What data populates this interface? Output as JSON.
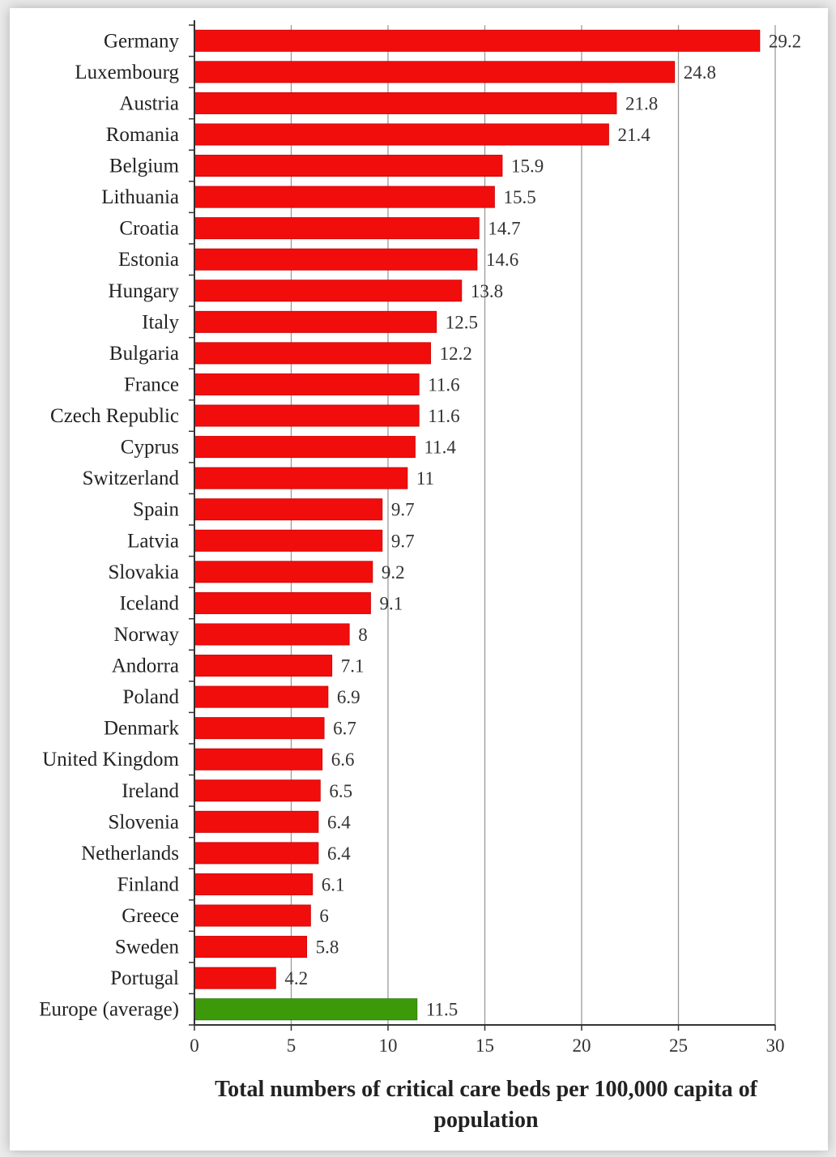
{
  "chart_data": {
    "type": "bar",
    "orientation": "horizontal",
    "xlabel_lines": [
      "Total numbers of critical care beds per 100,000 capita of",
      "population"
    ],
    "xlim": [
      0,
      30
    ],
    "xticks": [
      0,
      5,
      10,
      15,
      20,
      25,
      30
    ],
    "grid": "vertical",
    "colors": {
      "bar": "#f20d0d",
      "average_bar": "#3c9a0a"
    },
    "categories": [
      "Germany",
      "Luxembourg",
      "Austria",
      "Romania",
      "Belgium",
      "Lithuania",
      "Croatia",
      "Estonia",
      "Hungary",
      "Italy",
      "Bulgaria",
      "France",
      "Czech Republic",
      "Cyprus",
      "Switzerland",
      "Spain",
      "Latvia",
      "Slovakia",
      "Iceland",
      "Norway",
      "Andorra",
      "Poland",
      "Denmark",
      "United Kingdom",
      "Ireland",
      "Slovenia",
      "Netherlands",
      "Finland",
      "Greece",
      "Sweden",
      "Portugal",
      "Europe (average)"
    ],
    "values": [
      29.2,
      24.8,
      21.8,
      21.4,
      15.9,
      15.5,
      14.7,
      14.6,
      13.8,
      12.5,
      12.2,
      11.6,
      11.6,
      11.4,
      11,
      9.7,
      9.7,
      9.2,
      9.1,
      8,
      7.1,
      6.9,
      6.7,
      6.6,
      6.5,
      6.4,
      6.4,
      6.1,
      6,
      5.8,
      4.2,
      11.5
    ],
    "highlight_index": 31
  }
}
